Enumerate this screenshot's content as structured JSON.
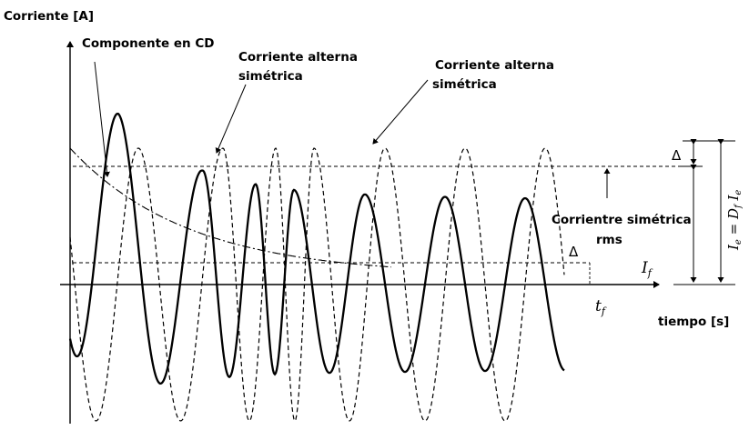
{
  "labels": {
    "y_axis": "Corriente [A]",
    "x_axis": "tiempo [s]",
    "dc_component": "Componente en CD",
    "ac_sym_1_line1": "Corriente alterna",
    "ac_sym_1_line2": "simétrica",
    "ac_sym_2_line1": "Corriente alterna",
    "ac_sym_2_line2": "simétrica",
    "rms_line1": "Corrientre simétrica",
    "rms_line2": "rms",
    "t_f": "t_f",
    "I_f": "I_f",
    "delta_upper": "Δ",
    "delta_lower": "Δ",
    "formula": "I_e = D_f I_f"
  },
  "colors": {
    "ink": "#000000",
    "background": "#ffffff"
  }
}
